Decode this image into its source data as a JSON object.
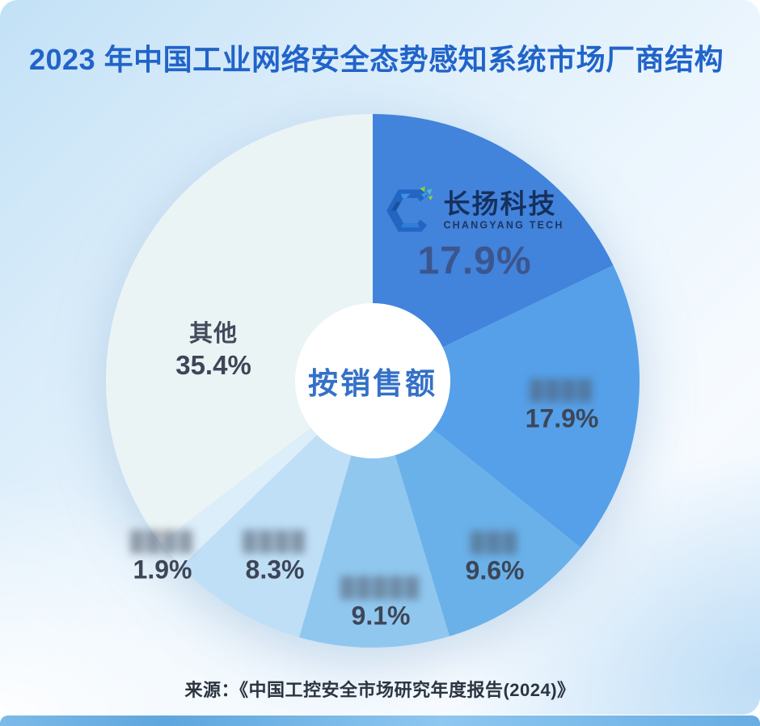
{
  "page": {
    "title": "2023 年中国工业网络安全态势感知系统市场厂商结构",
    "source": "来源：《中国工控安全市场研究年度报告(2024)》",
    "colors": {
      "title": "#2164C9",
      "source": "#2B3440",
      "bottom_strip": "#6FB2E5",
      "center_text": "#3471C7"
    }
  },
  "logo": {
    "cn": "长扬科技",
    "en": "CHANGYANG TECH"
  },
  "chart_data": {
    "type": "pie",
    "title": "2023 年中国工业网络安全态势感知系统市场厂商结构",
    "center_label": "按销售额",
    "donut": true,
    "inner_radius_ratio": 0.292,
    "start_angle_deg": 0,
    "direction": "clockwise",
    "unit": "%",
    "legend_position": "labels-on-slices",
    "source": "来源：《中国工控安全市场研究年度报告(2024)》",
    "slices": [
      {
        "id": "changyang",
        "display_name": "长扬科技",
        "name_blurred": false,
        "value": 17.9,
        "pct_label": "17.9%",
        "color": "#4283DC"
      },
      {
        "id": "vendor-2",
        "display_name": "████",
        "name_blurred": true,
        "value": 17.9,
        "pct_label": "17.9%",
        "color": "#55A0E9"
      },
      {
        "id": "vendor-3",
        "display_name": "███",
        "name_blurred": true,
        "value": 9.6,
        "pct_label": "9.6%",
        "color": "#6AB1E9"
      },
      {
        "id": "vendor-4",
        "display_name": "█████",
        "name_blurred": true,
        "value": 9.1,
        "pct_label": "9.1%",
        "color": "#90C7EF"
      },
      {
        "id": "vendor-5",
        "display_name": "████",
        "name_blurred": true,
        "value": 8.3,
        "pct_label": "8.3%",
        "color": "#BFDFF6"
      },
      {
        "id": "vendor-6",
        "display_name": "████",
        "name_blurred": true,
        "value": 1.9,
        "pct_label": "1.9%",
        "color": "#DCEEF9"
      },
      {
        "id": "others",
        "display_name": "其他",
        "name_blurred": false,
        "value": 35.4,
        "pct_label": "35.4%",
        "color": "#EBF4F5"
      }
    ]
  }
}
